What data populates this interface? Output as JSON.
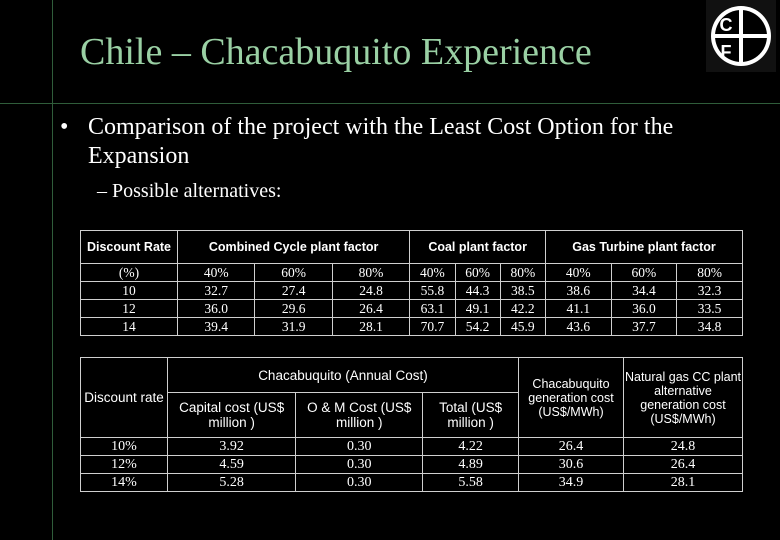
{
  "slide": {
    "title": "Chile – Chacabuquito Experience",
    "bullet": "Comparison of the project with the Least Cost Option for the Expansion",
    "sub_bullet": "– Possible alternatives:",
    "logo": "CF-logo-icon"
  },
  "table1": {
    "headers": {
      "discount_rate": "Discount Rate",
      "combined_cycle": "Combined Cycle  plant factor",
      "coal": "Coal plant factor",
      "gas_turbine": "Gas Turbine plant factor"
    },
    "subheaders": [
      "(%)",
      "40%",
      "60%",
      "80%",
      "40%",
      "60%",
      "80%",
      "40%",
      "60%",
      "80%"
    ],
    "rows": [
      [
        "10",
        "32.7",
        "27.4",
        "24.8",
        "55.8",
        "44.3",
        "38.5",
        "38.6",
        "34.4",
        "32.3"
      ],
      [
        "12",
        "36.0",
        "29.6",
        "26.4",
        "63.1",
        "49.1",
        "42.2",
        "41.1",
        "36.0",
        "33.5"
      ],
      [
        "14",
        "39.4",
        "31.9",
        "28.1",
        "70.7",
        "54.2",
        "45.9",
        "43.6",
        "37.7",
        "34.8"
      ]
    ]
  },
  "table2": {
    "headers": {
      "discount_rate": "Discount rate",
      "annual_cost": "Chacabuquito (Annual Cost)",
      "capital": "Capital cost (US$ million )",
      "om": "O & M Cost (US$ million )",
      "total": "Total (US$ million )",
      "generation": "Chacabuquito generation cost (US$/MWh)",
      "gas_cc": "Natural gas CC plant alternative generation cost (US$/MWh)"
    },
    "rows": [
      [
        "10%",
        "3.92",
        "0.30",
        "4.22",
        "26.4",
        "24.8"
      ],
      [
        "12%",
        "4.59",
        "0.30",
        "4.89",
        "30.6",
        "26.4"
      ],
      [
        "14%",
        "5.28",
        "0.30",
        "5.58",
        "34.9",
        "28.1"
      ]
    ]
  }
}
